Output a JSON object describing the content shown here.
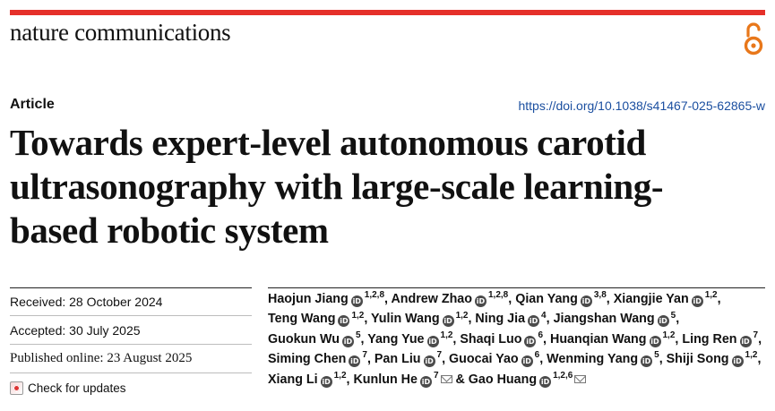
{
  "journal": "nature communications",
  "article_type": "Article",
  "doi": "https://doi.org/10.1038/s41467-025-62865-w",
  "title_lines": [
    "Towards expert-level autonomous carotid",
    "ultrasonography with large-scale learning-",
    "based robotic system"
  ],
  "dates": {
    "received": "Received: 28 October 2024",
    "accepted": "Accepted: 30 July 2025",
    "published": "Published online: 23 August 2025"
  },
  "check_updates": "Check for updates",
  "authors": [
    {
      "name": "Haojun Jiang",
      "aff": "1,2,8",
      "sep": ", "
    },
    {
      "name": "Andrew Zhao",
      "aff": "1,2,8",
      "sep": ", "
    },
    {
      "name": "Qian Yang",
      "aff": "3,8",
      "sep": ", "
    },
    {
      "name": "Xiangjie Yan",
      "aff": "1,2",
      "sep": ","
    },
    {
      "name": "Teng Wang",
      "aff": "1,2",
      "sep": ", "
    },
    {
      "name": "Yulin Wang",
      "aff": "1,2",
      "sep": ", "
    },
    {
      "name": "Ning Jia",
      "aff": "4",
      "sep": ", "
    },
    {
      "name": "Jiangshan Wang",
      "aff": "5",
      "sep": ","
    },
    {
      "name": "Guokun Wu",
      "aff": "5",
      "sep": ", "
    },
    {
      "name": "Yang Yue",
      "aff": "1,2",
      "sep": ", "
    },
    {
      "name": "Shaqi Luo",
      "aff": "6",
      "sep": ", "
    },
    {
      "name": "Huanqian Wang",
      "aff": "1,2",
      "sep": ", "
    },
    {
      "name": "Ling Ren",
      "aff": "7",
      "sep": ","
    },
    {
      "name": "Siming Chen",
      "aff": "7",
      "sep": ", "
    },
    {
      "name": "Pan Liu",
      "aff": "7",
      "sep": ", "
    },
    {
      "name": "Guocai Yao",
      "aff": "6",
      "sep": ", "
    },
    {
      "name": "Wenming Yang",
      "aff": "5",
      "sep": ", "
    },
    {
      "name": "Shiji Song",
      "aff": "1,2",
      "sep": ","
    },
    {
      "name": "Xiang Li",
      "aff": "1,2",
      "sep": ", "
    },
    {
      "name": "Kunlun He",
      "aff": "7",
      "sep": " & "
    },
    {
      "name": "Gao Huang",
      "aff": "1,2,6",
      "sep": ""
    }
  ],
  "colors": {
    "accent_bar": "#e5302a",
    "open_access_icon": "#e8771a",
    "doi_link": "#1b4fa0"
  }
}
